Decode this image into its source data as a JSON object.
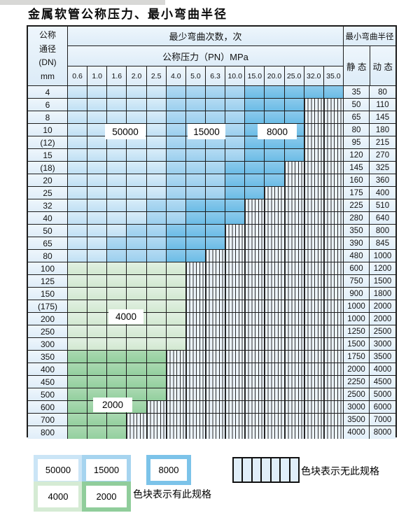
{
  "title": "金属软管公称压力、最小弯曲半径",
  "colors": {
    "c50000": "#c0e0f4",
    "c15000": "#9bcfee",
    "c8000": "#6bbce6",
    "c4000": "#d2e8d1",
    "c2000": "#93cf9e",
    "hatch_bg": "#ecf4fb",
    "grid": "#1c1c1c",
    "header_bg": "#e4f0fa"
  },
  "table": {
    "header": {
      "dn_lines": [
        "公称",
        "通径",
        "(DN)",
        "mm"
      ],
      "bend_times": "最少弯曲次数，次",
      "pressure": "公称压力（PN）MPa",
      "pn_columns": [
        "0.6",
        "1.0",
        "1.6",
        "2.0",
        "2.5",
        "4.0",
        "5.0",
        "6.3",
        "10.0",
        "15.0",
        "20.0",
        "25.0",
        "32.0",
        "35.0"
      ],
      "radius": "最小弯曲半径",
      "static": "静 态",
      "dynamic": "动 态"
    },
    "cell_key": {
      "50": "bend cycles 50000",
      "15": "bend cycles 15000",
      "8": "bend cycles 8000",
      "4": "bend cycles 4000",
      "2": "bend cycles 2000",
      "x": "no such specification (hatched)"
    },
    "rows": [
      {
        "dn": "4",
        "static": "35",
        "dynamic": "80",
        "cells": [
          "50",
          "50",
          "50",
          "50",
          "50",
          "15",
          "15",
          "15",
          "15",
          "8",
          "8",
          "8",
          "8",
          "8"
        ]
      },
      {
        "dn": "6",
        "static": "50",
        "dynamic": "110",
        "cells": [
          "50",
          "50",
          "50",
          "50",
          "50",
          "15",
          "15",
          "15",
          "15",
          "8",
          "8",
          "8",
          "x",
          "x"
        ]
      },
      {
        "dn": "8",
        "static": "65",
        "dynamic": "145",
        "cells": [
          "50",
          "50",
          "50",
          "50",
          "50",
          "15",
          "15",
          "15",
          "15",
          "8",
          "8",
          "8",
          "x",
          "x"
        ]
      },
      {
        "dn": "10",
        "static": "80",
        "dynamic": "180",
        "cells": [
          "50",
          "50",
          "50",
          "50",
          "50",
          "15",
          "15",
          "15",
          "15",
          "8",
          "8",
          "8",
          "x",
          "x"
        ]
      },
      {
        "dn": "(12)",
        "static": "95",
        "dynamic": "215",
        "cells": [
          "50",
          "50",
          "50",
          "50",
          "50",
          "15",
          "15",
          "15",
          "15",
          "8",
          "8",
          "8",
          "x",
          "x"
        ]
      },
      {
        "dn": "15",
        "static": "120",
        "dynamic": "270",
        "cells": [
          "50",
          "50",
          "50",
          "50",
          "50",
          "15",
          "15",
          "15",
          "15",
          "8",
          "8",
          "8",
          "x",
          "x"
        ]
      },
      {
        "dn": "(18)",
        "static": "145",
        "dynamic": "325",
        "cells": [
          "50",
          "50",
          "50",
          "50",
          "50",
          "15",
          "15",
          "15",
          "8",
          "8",
          "8",
          "x",
          "x",
          "x"
        ]
      },
      {
        "dn": "20",
        "static": "160",
        "dynamic": "360",
        "cells": [
          "50",
          "50",
          "50",
          "50",
          "50",
          "15",
          "15",
          "15",
          "8",
          "8",
          "8",
          "x",
          "x",
          "x"
        ]
      },
      {
        "dn": "25",
        "static": "175",
        "dynamic": "400",
        "cells": [
          "50",
          "50",
          "50",
          "50",
          "50",
          "15",
          "15",
          "15",
          "8",
          "8",
          "x",
          "x",
          "x",
          "x"
        ]
      },
      {
        "dn": "32",
        "static": "225",
        "dynamic": "510",
        "cells": [
          "50",
          "50",
          "50",
          "50",
          "15",
          "15",
          "8",
          "8",
          "8",
          "x",
          "x",
          "x",
          "x",
          "x"
        ]
      },
      {
        "dn": "40",
        "static": "280",
        "dynamic": "640",
        "cells": [
          "50",
          "50",
          "50",
          "50",
          "15",
          "15",
          "8",
          "8",
          "8",
          "x",
          "x",
          "x",
          "x",
          "x"
        ]
      },
      {
        "dn": "50",
        "static": "350",
        "dynamic": "800",
        "cells": [
          "50",
          "50",
          "50",
          "15",
          "15",
          "8",
          "8",
          "8",
          "x",
          "x",
          "x",
          "x",
          "x",
          "x"
        ]
      },
      {
        "dn": "65",
        "static": "390",
        "dynamic": "845",
        "cells": [
          "50",
          "50",
          "15",
          "15",
          "15",
          "8",
          "8",
          "8",
          "x",
          "x",
          "x",
          "x",
          "x",
          "x"
        ]
      },
      {
        "dn": "80",
        "static": "480",
        "dynamic": "1000",
        "cells": [
          "50",
          "50",
          "15",
          "15",
          "15",
          "8",
          "8",
          "x",
          "x",
          "x",
          "x",
          "x",
          "x",
          "x"
        ]
      },
      {
        "dn": "100",
        "static": "600",
        "dynamic": "1200",
        "cells": [
          "4",
          "4",
          "4",
          "4",
          "4",
          "4",
          "x",
          "x",
          "x",
          "x",
          "x",
          "x",
          "x",
          "x"
        ]
      },
      {
        "dn": "125",
        "static": "750",
        "dynamic": "1500",
        "cells": [
          "4",
          "4",
          "4",
          "4",
          "4",
          "4",
          "x",
          "x",
          "x",
          "x",
          "x",
          "x",
          "x",
          "x"
        ]
      },
      {
        "dn": "150",
        "static": "900",
        "dynamic": "1800",
        "cells": [
          "4",
          "4",
          "4",
          "4",
          "4",
          "4",
          "x",
          "x",
          "x",
          "x",
          "x",
          "x",
          "x",
          "x"
        ]
      },
      {
        "dn": "(175)",
        "static": "1000",
        "dynamic": "2000",
        "cells": [
          "4",
          "4",
          "4",
          "4",
          "4",
          "4",
          "x",
          "x",
          "x",
          "x",
          "x",
          "x",
          "x",
          "x"
        ]
      },
      {
        "dn": "200",
        "static": "1000",
        "dynamic": "2000",
        "cells": [
          "4",
          "4",
          "4",
          "4",
          "4",
          "4",
          "x",
          "x",
          "x",
          "x",
          "x",
          "x",
          "x",
          "x"
        ]
      },
      {
        "dn": "250",
        "static": "1250",
        "dynamic": "2500",
        "cells": [
          "4",
          "4",
          "4",
          "4",
          "4",
          "4",
          "x",
          "x",
          "x",
          "x",
          "x",
          "x",
          "x",
          "x"
        ]
      },
      {
        "dn": "300",
        "static": "1500",
        "dynamic": "3000",
        "cells": [
          "4",
          "4",
          "4",
          "4",
          "4",
          "4",
          "x",
          "x",
          "x",
          "x",
          "x",
          "x",
          "x",
          "x"
        ]
      },
      {
        "dn": "350",
        "static": "1750",
        "dynamic": "3500",
        "cells": [
          "2",
          "2",
          "2",
          "2",
          "2",
          "x",
          "x",
          "x",
          "x",
          "x",
          "x",
          "x",
          "x",
          "x"
        ]
      },
      {
        "dn": "400",
        "static": "2000",
        "dynamic": "4000",
        "cells": [
          "2",
          "2",
          "2",
          "2",
          "2",
          "x",
          "x",
          "x",
          "x",
          "x",
          "x",
          "x",
          "x",
          "x"
        ]
      },
      {
        "dn": "450",
        "static": "2250",
        "dynamic": "4500",
        "cells": [
          "2",
          "2",
          "2",
          "2",
          "2",
          "x",
          "x",
          "x",
          "x",
          "x",
          "x",
          "x",
          "x",
          "x"
        ]
      },
      {
        "dn": "500",
        "static": "2500",
        "dynamic": "5000",
        "cells": [
          "2",
          "2",
          "2",
          "2",
          "2",
          "x",
          "x",
          "x",
          "x",
          "x",
          "x",
          "x",
          "x",
          "x"
        ]
      },
      {
        "dn": "600",
        "static": "3000",
        "dynamic": "6000",
        "cells": [
          "2",
          "2",
          "2",
          "2",
          "x",
          "x",
          "x",
          "x",
          "x",
          "x",
          "x",
          "x",
          "x",
          "x"
        ]
      },
      {
        "dn": "700",
        "static": "3500",
        "dynamic": "7000",
        "cells": [
          "2",
          "2",
          "2",
          "x",
          "x",
          "x",
          "x",
          "x",
          "x",
          "x",
          "x",
          "x",
          "x",
          "x"
        ]
      },
      {
        "dn": "800",
        "static": "4000",
        "dynamic": "8000",
        "cells": [
          "2",
          "2",
          "2",
          "x",
          "x",
          "x",
          "x",
          "x",
          "x",
          "x",
          "x",
          "x",
          "x",
          "x"
        ]
      }
    ]
  },
  "overlays": {
    "l50000": "50000",
    "l15000": "15000",
    "l8000": "8000",
    "l4000": "4000",
    "l2000": "2000"
  },
  "legend": {
    "items": [
      {
        "label": "50000"
      },
      {
        "label": "15000"
      },
      {
        "label": "8000"
      },
      {
        "label": "4000"
      },
      {
        "label": "2000"
      }
    ],
    "has_spec_text": "色块表示有此规格",
    "no_spec_text": "色块表示无此规格"
  }
}
